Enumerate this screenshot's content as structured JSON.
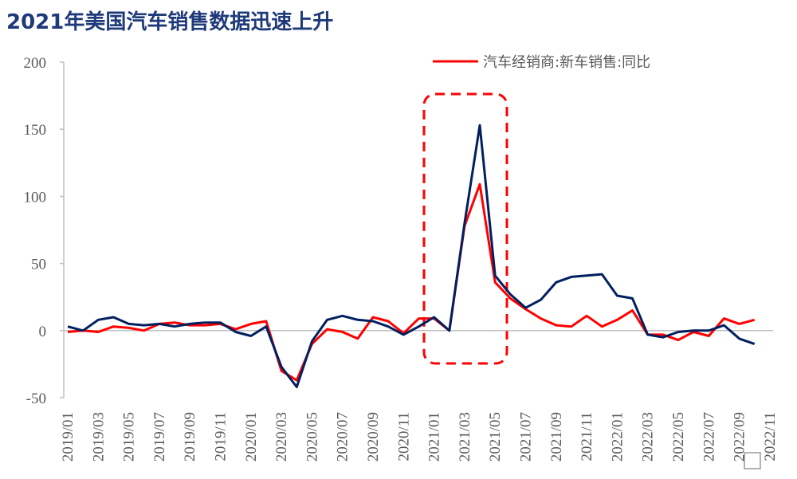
{
  "chart_data": {
    "type": "line",
    "title": "2021年美国汽车销售数据迅速上升",
    "categories": [
      "2019/01",
      null,
      "2019/03",
      null,
      "2019/05",
      null,
      "2019/07",
      null,
      "2019/09",
      null,
      "2019/11",
      null,
      "2020/01",
      null,
      "2020/03",
      null,
      "2020/05",
      null,
      "2020/07",
      null,
      "2020/09",
      null,
      "2020/11",
      null,
      "2021/01",
      null,
      "2021/03",
      null,
      "2021/05",
      null,
      "2021/07",
      null,
      "2021/09",
      null,
      "2021/11",
      null,
      "2022/01",
      null,
      "2022/03",
      null,
      "2022/05",
      null,
      "2022/07",
      null,
      "2022/09",
      null,
      "2022/11"
    ],
    "series": [
      {
        "name": "汽车经销商:新车销售:同比",
        "color": "#ff0000",
        "values": [
          -1,
          0,
          -1,
          3,
          2,
          0,
          5,
          6,
          4,
          4,
          5,
          1,
          5,
          7,
          -30,
          -37,
          -10,
          1,
          -1,
          -6,
          10,
          7,
          -2,
          9,
          9,
          0,
          78,
          109,
          36,
          24,
          16,
          9,
          4,
          3,
          11,
          3,
          8,
          15,
          -3,
          -3,
          -7,
          -1,
          -4,
          9,
          5,
          8,
          null
        ]
      },
      {
        "color": "#002060",
        "values": [
          3,
          0,
          8,
          10,
          5,
          4,
          5,
          3,
          5,
          6,
          6,
          -1,
          -4,
          3,
          -27,
          -42,
          -8,
          8,
          11,
          8,
          7,
          3,
          -3,
          3,
          10,
          0,
          80,
          153,
          41,
          27,
          17,
          23,
          36,
          40,
          41,
          42,
          26,
          24,
          -3,
          -5,
          -1,
          0,
          0,
          4,
          -6,
          -10,
          null
        ]
      }
    ],
    "ylim": [
      -50,
      200
    ],
    "yticks": [
      -50,
      0,
      50,
      100,
      150,
      200
    ],
    "grid": false,
    "legend": "top-right"
  }
}
